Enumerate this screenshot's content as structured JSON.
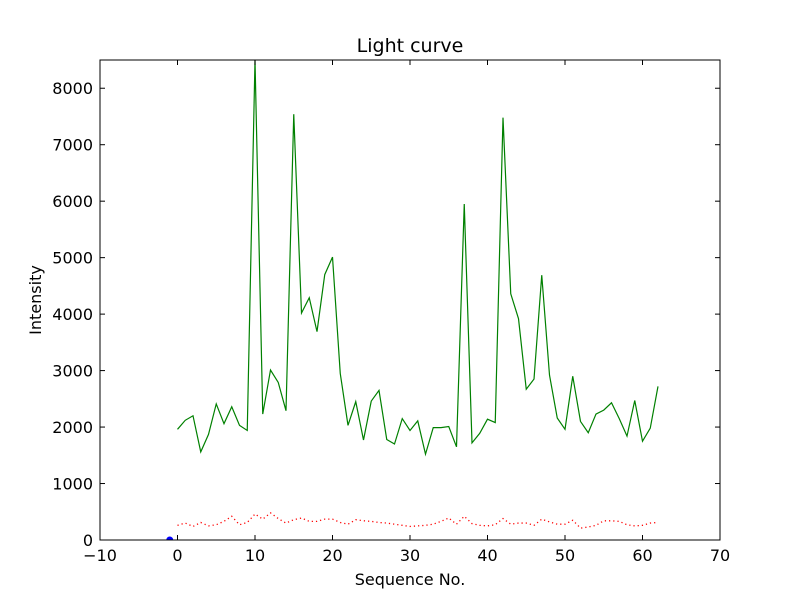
{
  "chart_data": {
    "type": "line",
    "title": "Light curve",
    "xlabel": "Sequence No.",
    "ylabel": "Intensity",
    "xlim": [
      -10,
      70
    ],
    "ylim": [
      0,
      8500
    ],
    "xticks": [
      -10,
      0,
      10,
      20,
      30,
      40,
      50,
      60,
      70
    ],
    "yticks": [
      0,
      1000,
      2000,
      3000,
      4000,
      5000,
      6000,
      7000,
      8000
    ],
    "grid": false,
    "legend": "none",
    "x": [
      0,
      1,
      2,
      3,
      4,
      5,
      6,
      7,
      8,
      9,
      10,
      11,
      12,
      13,
      14,
      15,
      16,
      17,
      18,
      19,
      20,
      21,
      22,
      23,
      24,
      25,
      26,
      27,
      28,
      29,
      30,
      31,
      32,
      33,
      34,
      35,
      36,
      37,
      38,
      39,
      40,
      41,
      42,
      43,
      44,
      45,
      46,
      47,
      48,
      49,
      50,
      51,
      52,
      53,
      54,
      55,
      56,
      57,
      58,
      59,
      60,
      61,
      62
    ],
    "series": [
      {
        "style": "solid",
        "color": "#008000",
        "values": [
          1960,
          2120,
          2200,
          1560,
          1870,
          2410,
          2060,
          2360,
          2030,
          1940,
          8500,
          2230,
          3010,
          2790,
          2290,
          7540,
          4020,
          4290,
          3690,
          4700,
          5010,
          2950,
          2030,
          2450,
          1770,
          2460,
          2650,
          1780,
          1700,
          2150,
          1940,
          2110,
          1520,
          1990,
          1990,
          2010,
          1650,
          5950,
          1720,
          1890,
          2140,
          2080,
          7480,
          4360,
          3920,
          2670,
          2850,
          4690,
          2920,
          2160,
          1960,
          2900,
          2100,
          1900,
          2230,
          2300,
          2430,
          2150,
          1840,
          2470,
          1750,
          1980,
          2720
        ]
      },
      {
        "style": "dotted",
        "color": "#ff0000",
        "values": [
          260,
          300,
          240,
          310,
          250,
          270,
          330,
          420,
          270,
          310,
          460,
          370,
          480,
          380,
          300,
          360,
          390,
          330,
          330,
          370,
          370,
          310,
          280,
          360,
          340,
          330,
          310,
          300,
          280,
          260,
          240,
          250,
          260,
          280,
          330,
          390,
          280,
          420,
          290,
          260,
          250,
          270,
          380,
          280,
          300,
          300,
          260,
          370,
          320,
          280,
          280,
          350,
          210,
          230,
          260,
          340,
          340,
          330,
          270,
          250,
          260,
          300,
          310
        ]
      },
      {
        "style": "marker",
        "color": "#0000ff",
        "x": [
          -1
        ],
        "values": [
          0
        ]
      }
    ]
  }
}
